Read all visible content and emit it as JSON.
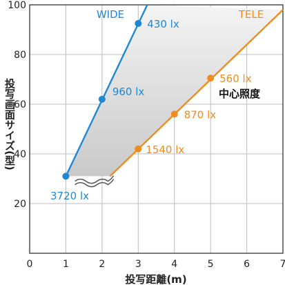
{
  "chart_data": {
    "type": "line",
    "xlabel": "投写距離(m)",
    "ylabel": "投写画面サイズ(型)",
    "xlim": [
      0,
      7
    ],
    "ylim": [
      0,
      100
    ],
    "x_ticks": [
      "0",
      "1",
      "2",
      "3",
      "4",
      "5",
      "6",
      "7"
    ],
    "y_ticks": [
      "20",
      "40",
      "60",
      "80",
      "100"
    ],
    "grid": true,
    "series": [
      {
        "name": "WIDE",
        "color": "#1e88d4",
        "points": [
          {
            "x": 1.0,
            "y": 31,
            "label": "3720 lx"
          },
          {
            "x": 2.0,
            "y": 62,
            "label": "960 lx"
          },
          {
            "x": 3.0,
            "y": 92.5,
            "label": "430 lx"
          }
        ],
        "line_extent": {
          "x_end": 3.25,
          "y_end": 100
        }
      },
      {
        "name": "TELE",
        "color": "#f08c1e",
        "points": [
          {
            "x": 3.0,
            "y": 42,
            "label": "1540 lx"
          },
          {
            "x": 4.0,
            "y": 56,
            "label": "870 lx"
          },
          {
            "x": 5.0,
            "y": 70.5,
            "label": "560 lx"
          }
        ],
        "line_extent": {
          "x_start": 2.22,
          "y_start": 31,
          "x_end": 7.0,
          "y_end": 98
        }
      }
    ],
    "annotation": "中心照度"
  }
}
